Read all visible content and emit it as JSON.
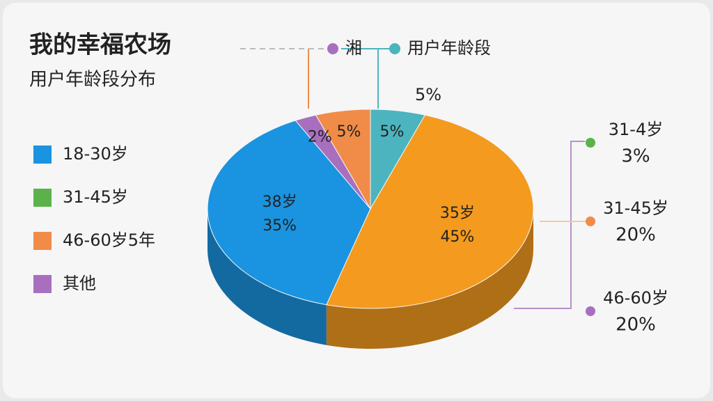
{
  "chart_data": {
    "type": "pie",
    "title": "我的幸福农场",
    "subtitle": "用户年龄段分布",
    "categories": [
      null,
      "35岁",
      "38岁",
      null,
      null
    ],
    "values": [
      5,
      45,
      35,
      2,
      5
    ],
    "value_labels": [
      "5%",
      "45%",
      "35%",
      "2%",
      "5%"
    ],
    "colors": [
      "#4cb4be",
      "#f39a1f",
      "#1a93e0",
      "#a86fbf",
      "#f08c47"
    ],
    "legend": [
      {
        "label": "18-30岁",
        "color": "#1a93e0"
      },
      {
        "label": "31-45岁",
        "color": "#5cb24a"
      },
      {
        "label": "46-60岁5年",
        "color": "#f08c47"
      },
      {
        "label": "其他",
        "color": "#a86fbf"
      }
    ],
    "top_legend": [
      {
        "label": "湘",
        "color": "#a86fbf"
      },
      {
        "label": "用户年龄段",
        "color": "#4cb4be"
      }
    ],
    "annotation": "5%",
    "callouts": [
      {
        "label": "31-4岁",
        "text": "3%",
        "color": "#5cb24a"
      },
      {
        "label": "31-45岁",
        "text": "20%",
        "color": "#f08c47"
      },
      {
        "label": "46-60岁",
        "text": "20%",
        "color": "#a86fbf"
      }
    ]
  }
}
